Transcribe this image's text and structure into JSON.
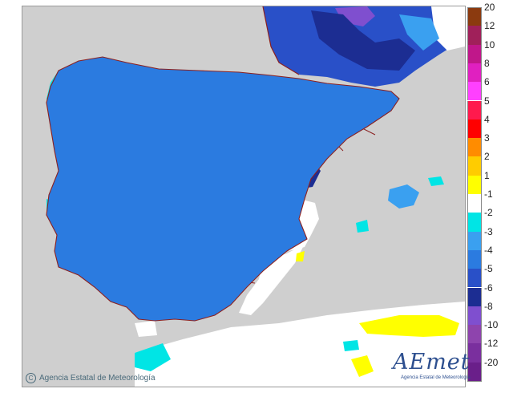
{
  "map": {
    "colors": {
      "sea": "#cfcfcf",
      "land_neutral": "#f1f1f1",
      "class_pos": "#ffffff",
      "class_m1": "#00e5e5",
      "class_m2": "#3aa0f0",
      "class_m3": "#2b7be0",
      "class_m4": "#2950c8",
      "class_m5": "#1c2d92",
      "class_m6": "#7f4fcf",
      "class_p1": "#ffff00",
      "borders": "#8b2020"
    }
  },
  "legend": {
    "items": [
      {
        "label": "20",
        "color": "#8b3a0f"
      },
      {
        "label": "12",
        "color": "#a0205a"
      },
      {
        "label": "10",
        "color": "#c0178a"
      },
      {
        "label": "8",
        "color": "#e020c0"
      },
      {
        "label": "6",
        "color": "#ff40ff"
      },
      {
        "label": "5",
        "color": "#ff1a4d"
      },
      {
        "label": "4",
        "color": "#ff0000"
      },
      {
        "label": "3",
        "color": "#ff8c00"
      },
      {
        "label": "2",
        "color": "#ffcc00"
      },
      {
        "label": "1",
        "color": "#ffff00"
      },
      {
        "label": "-1",
        "color": "#ffffff"
      },
      {
        "label": "-2",
        "color": "#00e5e5"
      },
      {
        "label": "-3",
        "color": "#3aa0f0"
      },
      {
        "label": "-4",
        "color": "#2b7be0"
      },
      {
        "label": "-5",
        "color": "#2950c8"
      },
      {
        "label": "-6",
        "color": "#1c2d92"
      },
      {
        "label": "-8",
        "color": "#7f4fcf"
      },
      {
        "label": "-10",
        "color": "#8e44ad"
      },
      {
        "label": "-12",
        "color": "#7a2f9e"
      },
      {
        "label": "-20",
        "color": "#6a1f8a"
      }
    ]
  },
  "credit": {
    "copyright_symbol": "C",
    "text": "Agencia Estatal de Meteorología"
  },
  "logo": {
    "text": "AEmet",
    "subtitle": "Agencia Estatal de Meteorología"
  }
}
